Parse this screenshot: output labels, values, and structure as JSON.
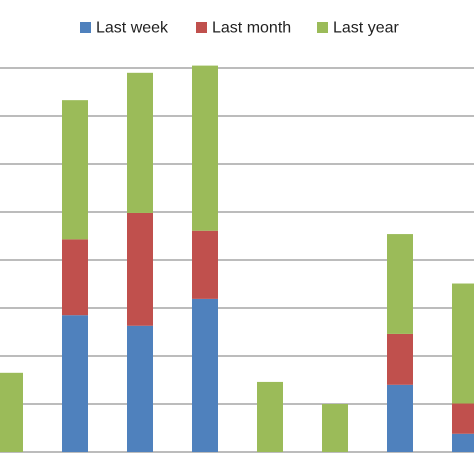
{
  "chart_data": {
    "type": "stacked_bar",
    "categories": [
      null,
      null,
      null,
      null,
      null,
      null,
      null,
      null
    ],
    "series": [
      {
        "name": "Last week",
        "color": "#4f81bd",
        "values": [
          0,
          2.85,
          2.63,
          3.19,
          0,
          0,
          1.4,
          0.38
        ]
      },
      {
        "name": "Last month",
        "color": "#c0504d",
        "values": [
          0,
          1.58,
          2.35,
          1.42,
          0,
          0,
          1.06,
          0.63
        ]
      },
      {
        "name": "Last year",
        "color": "#9bbb59",
        "values": [
          1.65,
          2.9,
          2.92,
          3.44,
          1.46,
          1.0,
          2.08,
          2.5
        ]
      }
    ],
    "ylim": [
      0,
      9.4
    ],
    "yticks": [
      0,
      1,
      2,
      3,
      4,
      5,
      6,
      7,
      8
    ],
    "grid": true,
    "legend": "top"
  }
}
